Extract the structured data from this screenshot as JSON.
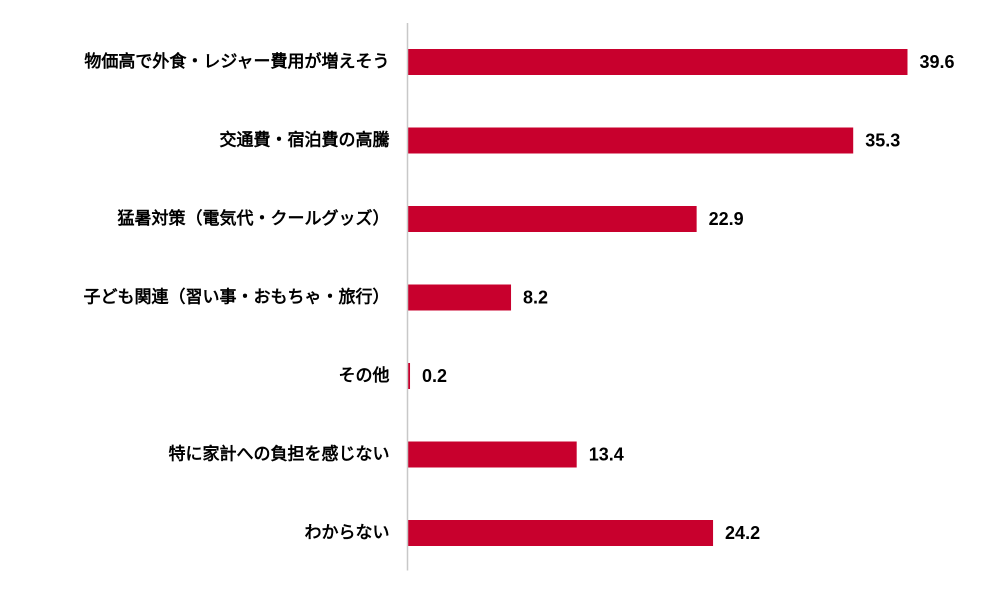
{
  "chart_data": {
    "type": "bar",
    "orientation": "horizontal",
    "categories": [
      "物価高で外食・レジャー費用が増えそう",
      "交通費・宿泊費の高騰",
      "猛暑対策（電気代・クールグッズ）",
      "子ども関連（習い事・おもちゃ・旅行）",
      "その他",
      "特に家計への負担を感じない",
      "わからない"
    ],
    "values": [
      39.6,
      35.3,
      22.9,
      8.2,
      0.2,
      13.4,
      24.2
    ],
    "value_labels": [
      "39.6",
      "35.3",
      "22.9",
      "8.2",
      "0.2",
      "13.4",
      "24.2"
    ],
    "xlim": [
      0,
      45
    ],
    "grid": false,
    "legend": "none",
    "bar_color": "#c8002d",
    "axis_color": "#c8c8c8"
  }
}
